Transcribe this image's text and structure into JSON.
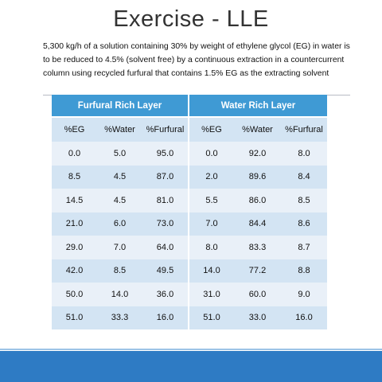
{
  "slide": {
    "title": "Exercise - LLE",
    "description_lines": [
      "5,300 kg/h of a solution containing 30% by weight of ethylene glycol (EG) in water is",
      "to be reduced to 4.5% (solvent free) by a continuous extraction in a countercurrent",
      "column using recycled furfural that contains 1.5% EG as the extracting solvent"
    ]
  },
  "table": {
    "groups": [
      "Furfural Rich Layer",
      "Water Rich Layer"
    ],
    "columns": [
      "%EG",
      "%Water",
      "%Furfural",
      "%EG",
      "%Water",
      "%Furfural"
    ],
    "rows": [
      [
        "0.0",
        "5.0",
        "95.0",
        "0.0",
        "92.0",
        "8.0"
      ],
      [
        "8.5",
        "4.5",
        "87.0",
        "2.0",
        "89.6",
        "8.4"
      ],
      [
        "14.5",
        "4.5",
        "81.0",
        "5.5",
        "86.0",
        "8.5"
      ],
      [
        "21.0",
        "6.0",
        "73.0",
        "7.0",
        "84.4",
        "8.6"
      ],
      [
        "29.0",
        "7.0",
        "64.0",
        "8.0",
        "83.3",
        "8.7"
      ],
      [
        "42.0",
        "8.5",
        "49.5",
        "14.0",
        "77.2",
        "8.8"
      ],
      [
        "50.0",
        "14.0",
        "36.0",
        "31.0",
        "60.0",
        "9.0"
      ],
      [
        "51.0",
        "33.3",
        "16.0",
        "51.0",
        "33.0",
        "16.0"
      ]
    ]
  },
  "colors": {
    "header": "#3f9ad4",
    "row_light": "#e9f0f8",
    "row_dark": "#d3e4f3",
    "footer": "#2e7bc4"
  }
}
